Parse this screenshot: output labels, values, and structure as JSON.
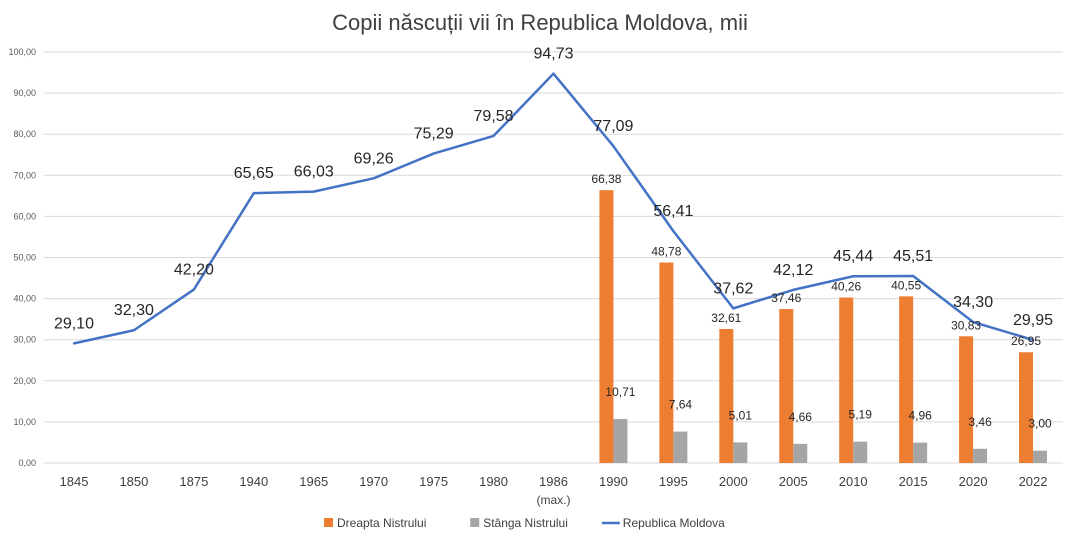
{
  "chart_data": {
    "type": "bar+line",
    "title": "Copii născuții vii în Republica Moldova, mii",
    "categories": [
      "1845",
      "1850",
      "1875",
      "1940",
      "1965",
      "1970",
      "1975",
      "1980",
      "1986",
      "1990",
      "1995",
      "2000",
      "2005",
      "2010",
      "2015",
      "2020",
      "2022"
    ],
    "category_notes": {
      "1986": "(max.)"
    },
    "ylim": [
      0,
      100
    ],
    "yticks": [
      "0,00",
      "10,00",
      "20,00",
      "30,00",
      "40,00",
      "50,00",
      "60,00",
      "70,00",
      "80,00",
      "90,00",
      "100,00"
    ],
    "grid": true,
    "legend_position": "bottom",
    "series": [
      {
        "name": "Dreapta Nistrului",
        "type": "bar",
        "color": "#ED7D31",
        "values": [
          null,
          null,
          null,
          null,
          null,
          null,
          null,
          null,
          null,
          66.38,
          48.78,
          32.61,
          37.46,
          40.26,
          40.55,
          30.83,
          26.95
        ],
        "labels": [
          null,
          null,
          null,
          null,
          null,
          null,
          null,
          null,
          null,
          "66,38",
          "48,78",
          "32,61",
          "37,46",
          "40,26",
          "40,55",
          "30,83",
          "26,95"
        ]
      },
      {
        "name": "Stânga Nistrului",
        "type": "bar",
        "color": "#A5A5A5",
        "values": [
          null,
          null,
          null,
          null,
          null,
          null,
          null,
          null,
          null,
          10.71,
          7.64,
          5.01,
          4.66,
          5.19,
          4.96,
          3.46,
          3.0
        ],
        "labels": [
          null,
          null,
          null,
          null,
          null,
          null,
          null,
          null,
          null,
          "10,71",
          "7,64",
          "5,01",
          "4,66",
          "5,19",
          "4,96",
          "3,46",
          "3,00"
        ]
      },
      {
        "name": "Republica Moldova",
        "type": "line",
        "color": "#4472C4",
        "values": [
          29.1,
          32.3,
          42.2,
          65.65,
          66.03,
          69.26,
          75.29,
          79.58,
          94.73,
          77.09,
          56.41,
          37.62,
          42.12,
          45.44,
          45.51,
          34.3,
          29.95
        ],
        "labels": [
          "29,10",
          "32,30",
          "42,20",
          "65,65",
          "66,03",
          "69,26",
          "75,29",
          "79,58",
          "94,73",
          "77,09",
          "56,41",
          "37,62",
          "42,12",
          "45,44",
          "45,51",
          "34,30",
          "29,95"
        ]
      }
    ]
  }
}
